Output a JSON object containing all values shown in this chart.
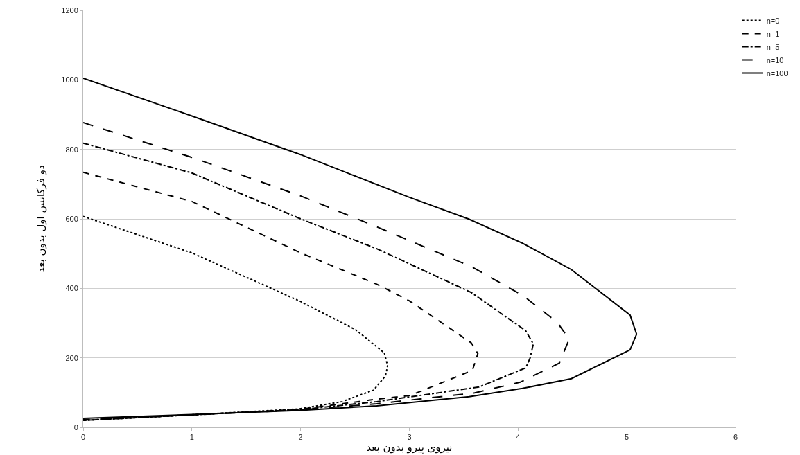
{
  "chart_data": {
    "type": "line",
    "xlabel": "نیروی پیرو بدون بعد",
    "ylabel": "دو فرکانس اول بدون بعد",
    "xlim": [
      0,
      6
    ],
    "xticks": [
      0,
      1,
      2,
      3,
      4,
      5,
      6
    ],
    "ylim": [
      0,
      1200
    ],
    "yticks": [
      0,
      200,
      400,
      600,
      800,
      1000,
      1200
    ],
    "grid": "y",
    "legend": "top right",
    "marker": "none",
    "series": [
      {
        "name": "n=0",
        "color": "#000000",
        "line_style": "dotted",
        "x": [
          0,
          1,
          1.5,
          2,
          2.51,
          2.77,
          2.8,
          2.78,
          2.67,
          2.38,
          1.98,
          1,
          0
        ],
        "values": [
          607,
          502,
          432,
          362,
          280,
          214,
          177,
          148,
          107,
          74,
          53,
          36,
          20
        ]
      },
      {
        "name": "n=1",
        "color": "#000000",
        "line_style": "dashed",
        "x": [
          0,
          1,
          2,
          2.7,
          3,
          3.57,
          3.63,
          3.58,
          3.01,
          2.7,
          2,
          1,
          0
        ],
        "values": [
          734,
          650,
          502,
          412,
          364,
          243,
          212,
          164,
          92,
          81,
          52,
          36,
          20
        ]
      },
      {
        "name": "n=5",
        "color": "#000000",
        "line_style": "dashdot",
        "x": [
          0,
          1,
          2,
          2.7,
          3.57,
          4.07,
          4.14,
          4.11,
          4.07,
          3.64,
          2.7,
          2,
          1,
          0
        ],
        "values": [
          818,
          732,
          600,
          514,
          388,
          278,
          240,
          199,
          171,
          116,
          74,
          51,
          36,
          20
        ]
      },
      {
        "name": "n=10",
        "color": "#000000",
        "line_style": "longdash",
        "x": [
          0,
          1,
          2,
          2.7,
          3.58,
          4.05,
          4.36,
          4.47,
          4.38,
          4.02,
          3.6,
          2.7,
          2,
          1,
          0
        ],
        "values": [
          877,
          777,
          666,
          577,
          461,
          378,
          302,
          254,
          185,
          130,
          99,
          68,
          50,
          36,
          22
        ]
      },
      {
        "name": "n=100",
        "color": "#000000",
        "line_style": "solid",
        "x": [
          0,
          1,
          2,
          3,
          3.55,
          4.04,
          4.49,
          5.03,
          5.09,
          5.03,
          4.49,
          4.04,
          3.55,
          2.7,
          2,
          1,
          0
        ],
        "values": [
          1005,
          896,
          785,
          662,
          599,
          530,
          454,
          323,
          268,
          223,
          140,
          112,
          88,
          62,
          49,
          37,
          26
        ]
      }
    ]
  }
}
